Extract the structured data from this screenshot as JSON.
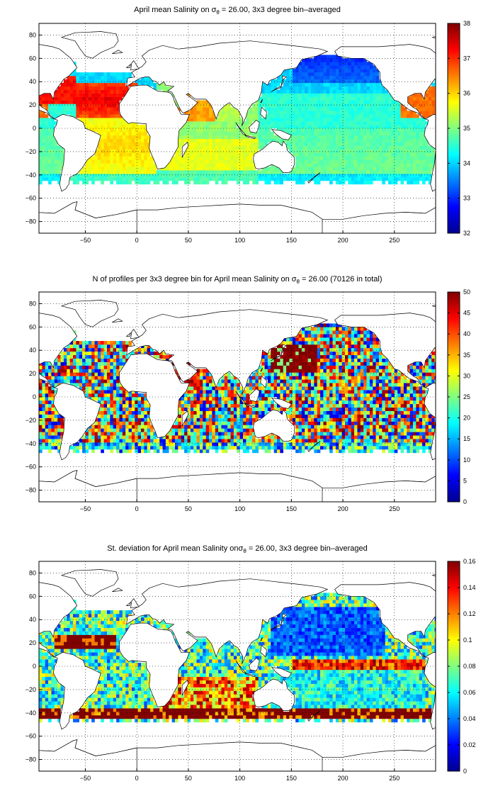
{
  "chart_data": [
    {
      "type": "heatmap",
      "title_pre": "April mean Salinity on ",
      "title_sigma": "σ",
      "title_sub": "θ",
      "title_post": " = 26.00, 3x3 degree bin–averaged",
      "xlim": [
        -95,
        290
      ],
      "ylim": [
        -90,
        90
      ],
      "xticks": [
        -50,
        0,
        50,
        100,
        150,
        200,
        250
      ],
      "yticks": [
        -80,
        -60,
        -40,
        -20,
        0,
        20,
        40,
        60,
        80
      ],
      "grid": "dotted",
      "colorbar": {
        "min": 32,
        "max": 38,
        "ticks": [
          32,
          33,
          34,
          35,
          36,
          37,
          38
        ],
        "colormap": "jet",
        "placement": "right"
      },
      "field": {
        "bin_size_deg": 3,
        "regions": [
          {
            "name": "subtropical North Atlantic",
            "value": 37.2
          },
          {
            "name": "South Atlantic",
            "value": 36.3
          },
          {
            "name": "Arabian Sea",
            "value": 36.2
          },
          {
            "name": "Indian Ocean",
            "value": 35.0
          },
          {
            "name": "North Pacific",
            "value": 34.2
          },
          {
            "name": "northern North Pacific",
            "value": 33.0
          },
          {
            "name": "Southern Ocean band",
            "value": 34.4
          }
        ]
      }
    },
    {
      "type": "heatmap",
      "title_pre": "N of profiles per 3x3 degree bin for April mean Salinity on ",
      "title_sigma": "σ",
      "title_sub": "θ",
      "title_post": " = 26.00 (70126 in total)",
      "xlim": [
        -95,
        290
      ],
      "ylim": [
        -90,
        90
      ],
      "xticks": [
        -50,
        0,
        50,
        100,
        150,
        200,
        250
      ],
      "yticks": [
        -80,
        -60,
        -40,
        -20,
        0,
        20,
        40,
        60,
        80
      ],
      "grid": "dotted",
      "colorbar": {
        "min": 0,
        "max": 50,
        "ticks": [
          0,
          5,
          10,
          15,
          20,
          25,
          30,
          35,
          40,
          45,
          50
        ],
        "colormap": "jet",
        "placement": "right"
      },
      "field": {
        "bin_size_deg": 3,
        "total_profiles": 70126,
        "regions": [
          {
            "name": "Kuroshio region",
            "value": 50
          },
          {
            "name": "Red Sea / Arabian Sea",
            "value": 45
          },
          {
            "name": "Pacific interior",
            "value": 28
          },
          {
            "name": "South Atlantic",
            "value": 18
          },
          {
            "name": "Southern Ocean band",
            "value": 12
          }
        ]
      }
    },
    {
      "type": "heatmap",
      "title_pre": "St. deviation for April mean Salinity on",
      "title_sigma": "σ",
      "title_sub": "θ",
      "title_post": " = 26.00, 3x3 degree bin–averaged",
      "xlim": [
        -95,
        290
      ],
      "ylim": [
        -90,
        90
      ],
      "xticks": [
        -50,
        0,
        50,
        100,
        150,
        200,
        250
      ],
      "yticks": [
        -80,
        -60,
        -40,
        -20,
        0,
        20,
        40,
        60,
        80
      ],
      "grid": "dotted",
      "colorbar": {
        "min": 0,
        "max": 0.16,
        "ticks": [
          0,
          0.02,
          0.04,
          0.06,
          0.08,
          0.1,
          0.12,
          0.14,
          0.16
        ],
        "colormap": "jet",
        "placement": "right"
      },
      "field": {
        "bin_size_deg": 3,
        "regions": [
          {
            "name": "Antarctic Circumpolar band near 40S",
            "value": 0.16
          },
          {
            "name": "Atlantic 20N band",
            "value": 0.15
          },
          {
            "name": "North Pacific interior",
            "value": 0.02
          },
          {
            "name": "Pacific equatorial band",
            "value": 0.12
          },
          {
            "name": "South Pacific interior",
            "value": 0.05
          }
        ]
      }
    }
  ]
}
